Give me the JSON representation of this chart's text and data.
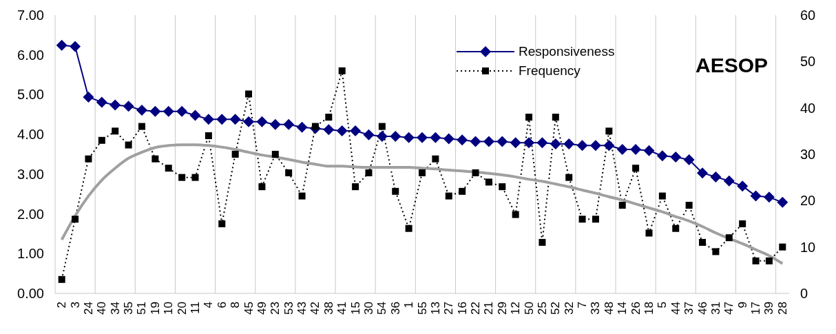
{
  "chart_data": {
    "type": "line",
    "title": "AESOP",
    "categories": [
      "2",
      "3",
      "24",
      "40",
      "34",
      "35",
      "51",
      "19",
      "10",
      "20",
      "11",
      "4",
      "6",
      "8",
      "45",
      "49",
      "23",
      "53",
      "43",
      "42",
      "38",
      "41",
      "15",
      "30",
      "54",
      "36",
      "1",
      "55",
      "13",
      "27",
      "16",
      "22",
      "21",
      "29",
      "12",
      "50",
      "25",
      "52",
      "32",
      "7",
      "33",
      "48",
      "14",
      "26",
      "18",
      "5",
      "44",
      "37",
      "46",
      "31",
      "47",
      "9",
      "17",
      "39",
      "28"
    ],
    "series": [
      {
        "name": "Responsiveness",
        "color": "#000080",
        "marker": "diamond",
        "line_style": "solid",
        "values": [
          6.24,
          6.21,
          4.94,
          4.81,
          4.74,
          4.71,
          4.61,
          4.58,
          4.58,
          4.58,
          4.48,
          4.38,
          4.38,
          4.38,
          4.32,
          4.32,
          4.25,
          4.25,
          4.18,
          4.15,
          4.12,
          4.09,
          4.09,
          3.99,
          3.95,
          3.95,
          3.92,
          3.92,
          3.92,
          3.89,
          3.86,
          3.82,
          3.82,
          3.82,
          3.79,
          3.79,
          3.79,
          3.76,
          3.76,
          3.72,
          3.72,
          3.72,
          3.62,
          3.62,
          3.59,
          3.46,
          3.43,
          3.36,
          3.03,
          2.93,
          2.83,
          2.7,
          2.45,
          2.42,
          2.29
        ]
      },
      {
        "name": "Frequency",
        "color": "#000000",
        "marker": "square",
        "line_style": "dotted",
        "axis": "y2",
        "values": [
          3,
          16,
          29,
          33,
          35,
          32,
          36,
          29,
          27,
          25,
          25,
          34,
          15,
          30,
          43,
          23,
          30,
          26,
          21,
          36,
          38,
          48,
          23,
          26,
          36,
          22,
          14,
          26,
          29,
          21,
          22,
          26,
          24,
          23,
          17,
          38,
          11,
          38,
          25,
          16,
          16,
          35,
          19,
          27,
          13,
          21,
          14,
          19,
          11,
          9,
          12,
          15,
          7,
          7,
          10
        ]
      },
      {
        "type": "line",
        "color": "#a0a0a0",
        "marker": "none",
        "line_style": "solid",
        "values": [
          1.35,
          1.95,
          2.45,
          2.85,
          3.15,
          3.4,
          3.55,
          3.67,
          3.72,
          3.74,
          3.74,
          3.72,
          3.68,
          3.62,
          3.55,
          3.48,
          3.43,
          3.37,
          3.3,
          3.25,
          3.2,
          3.2,
          3.18,
          3.17,
          3.17,
          3.17,
          3.17,
          3.15,
          3.13,
          3.1,
          3.08,
          3.05,
          3.02,
          2.98,
          2.93,
          2.87,
          2.82,
          2.75,
          2.68,
          2.6,
          2.52,
          2.43,
          2.35,
          2.25,
          2.15,
          2.05,
          1.93,
          1.82,
          1.68,
          1.52,
          1.38,
          1.25,
          1.1,
          0.95,
          0.75
        ]
      }
    ],
    "ylim": [
      0,
      7
    ],
    "yticks": [
      {
        "value": 0,
        "label": "0.00"
      },
      {
        "value": 1,
        "label": "1.00"
      },
      {
        "value": 2,
        "label": "2.00"
      },
      {
        "value": 3,
        "label": "3.00"
      },
      {
        "value": 4,
        "label": "4.00"
      },
      {
        "value": 5,
        "label": "5.00"
      },
      {
        "value": 6,
        "label": "6.00"
      },
      {
        "value": 7,
        "label": "7.00"
      }
    ],
    "y2lim": [
      0,
      60
    ],
    "y2ticks": [
      0,
      10,
      20,
      30,
      40,
      50,
      60
    ],
    "grid": "x",
    "legend": "top"
  }
}
